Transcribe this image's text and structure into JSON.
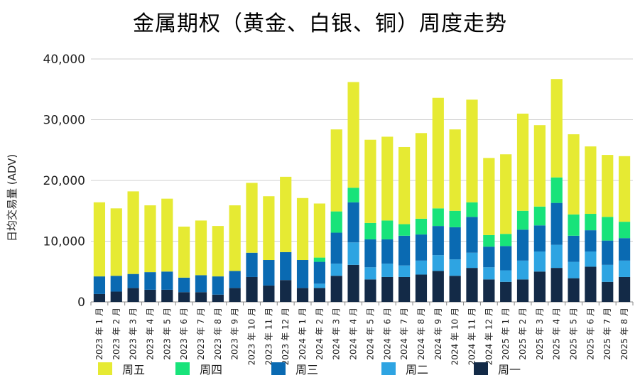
{
  "chart_data": {
    "type": "bar",
    "stacked": true,
    "title": "金属期权（黄金、白银、铜）周度走势",
    "ylabel": "日均交易量 (ADV)",
    "xlabel": "",
    "ylim": [
      0,
      40000
    ],
    "yticks": [
      "0",
      "10,000",
      "20,000",
      "30,000",
      "40,000"
    ],
    "grid": true,
    "legend_position": "bottom",
    "categories": [
      "2023 年 1 月",
      "2023 年 2 月",
      "2023 年 3 月",
      "2023 年 4 月",
      "2023 年 5 月",
      "2023 年 6 月",
      "2023 年 7 月",
      "2023 年 8 月",
      "2023 年 9 月",
      "2023 年 10 月",
      "2023 年 11 月",
      "2023 年 12 月",
      "2024 年 1 月",
      "2024 年 2 月",
      "2024 年 3 月",
      "2024 年 4 月",
      "2024 年 5 月",
      "2024 年 6 月",
      "2024 年 7 月",
      "2024 年 8 月",
      "2024 年 9 月",
      "2024 年 10 月",
      "2024 年 11 月",
      "2024 年 12 月",
      "2025 年 1 月",
      "2025 年 2 月",
      "2025 年 3 月",
      "2025 年 4 月",
      "2025 年 5 月",
      "2025 年 6 月",
      "2025 年 7 月",
      "2025 年 8 月"
    ],
    "series": [
      {
        "name": "周一",
        "color": "#132a47",
        "values": [
          1300,
          1700,
          2300,
          2000,
          2000,
          1600,
          1600,
          1200,
          2300,
          4100,
          2700,
          3600,
          2300,
          2300,
          4300,
          6100,
          3700,
          4100,
          4100,
          4500,
          5100,
          4300,
          5600,
          3700,
          3300,
          3700,
          5000,
          5600,
          3900,
          5800,
          3300,
          4100
        ]
      },
      {
        "name": "周二",
        "color": "#2ea4e2",
        "values": [
          0,
          0,
          0,
          0,
          0,
          0,
          0,
          0,
          0,
          0,
          0,
          0,
          0,
          700,
          2000,
          3700,
          2000,
          2200,
          1900,
          2300,
          2600,
          2700,
          2500,
          2000,
          1900,
          3100,
          3300,
          3800,
          2700,
          2500,
          2800,
          2700
        ]
      },
      {
        "name": "周三",
        "color": "#0a6ab2",
        "values": [
          2900,
          2600,
          2300,
          2900,
          3000,
          2400,
          2800,
          3000,
          2800,
          4000,
          4200,
          4600,
          4600,
          3600,
          5100,
          6600,
          4600,
          4000,
          4900,
          4300,
          4800,
          5300,
          5900,
          3400,
          4000,
          5100,
          4300,
          6900,
          4300,
          3500,
          4000,
          3700
        ]
      },
      {
        "name": "周四",
        "color": "#18e37a",
        "values": [
          0,
          0,
          0,
          0,
          0,
          0,
          0,
          0,
          0,
          0,
          0,
          0,
          0,
          700,
          3500,
          2400,
          2700,
          3100,
          1900,
          2600,
          2900,
          2700,
          2400,
          1900,
          2000,
          3100,
          3100,
          4200,
          3500,
          2700,
          3900,
          2700
        ]
      },
      {
        "name": "周五",
        "color": "#e6ea33",
        "values": [
          12200,
          11100,
          13600,
          11000,
          12000,
          8400,
          9000,
          8300,
          10800,
          11500,
          10500,
          12400,
          10200,
          8900,
          13500,
          17400,
          13700,
          13800,
          12700,
          14100,
          18200,
          13400,
          16900,
          12700,
          13100,
          16000,
          13400,
          16200,
          13200,
          11100,
          10200,
          10800
        ]
      }
    ]
  }
}
